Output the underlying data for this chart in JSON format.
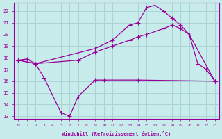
{
  "xlabel": "Windchill (Refroidissement éolien,°C)",
  "bg_color": "#c8ecec",
  "grid_color": "#aad4d4",
  "line_color": "#990099",
  "x_ticks": [
    0,
    1,
    2,
    3,
    4,
    5,
    6,
    7,
    8,
    9,
    10,
    11,
    12,
    13,
    14,
    15,
    16,
    17,
    18,
    19,
    20,
    21,
    22,
    23
  ],
  "y_ticks": [
    13,
    14,
    15,
    16,
    17,
    18,
    19,
    20,
    21,
    22
  ],
  "xlim": [
    -0.5,
    23.5
  ],
  "ylim": [
    12.8,
    22.7
  ],
  "series1_x": [
    0,
    2,
    3,
    5,
    6,
    7,
    9,
    10,
    14,
    23
  ],
  "series1_y": [
    17.8,
    17.5,
    16.3,
    13.3,
    13.0,
    14.7,
    16.1,
    16.1,
    16.1,
    16.0
  ],
  "series2_x": [
    0,
    1,
    2,
    7,
    9,
    11,
    13,
    14,
    15,
    17,
    18,
    19,
    20,
    23
  ],
  "series2_y": [
    17.8,
    17.9,
    17.5,
    17.8,
    18.5,
    19.0,
    19.5,
    19.8,
    20.0,
    20.5,
    20.8,
    20.5,
    20.0,
    16.0
  ],
  "series3_x": [
    0,
    2,
    9,
    11,
    13,
    14,
    15,
    16,
    17,
    18,
    19,
    20,
    21,
    22,
    23
  ],
  "series3_y": [
    17.8,
    17.5,
    18.8,
    19.5,
    20.8,
    21.0,
    22.3,
    22.5,
    22.0,
    21.4,
    20.8,
    20.0,
    17.5,
    17.0,
    16.0
  ]
}
